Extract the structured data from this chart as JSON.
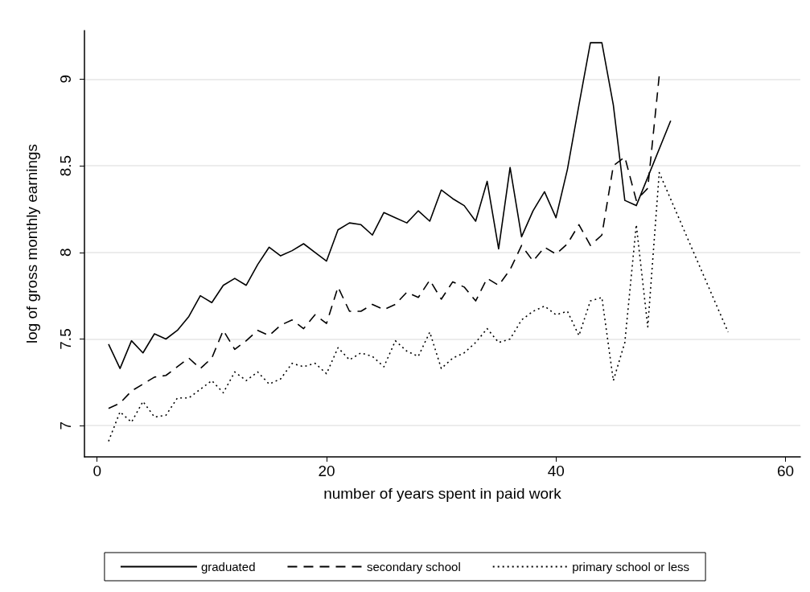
{
  "chart_data": {
    "type": "line",
    "xlabel": "number of years spent in paid work",
    "ylabel": "log of gross monthly earnings",
    "xlim": [
      -1.1,
      61.3
    ],
    "xticks": [
      0,
      20,
      40,
      60
    ],
    "ylim": [
      6.82,
      9.28
    ],
    "yticks": [
      7,
      7.5,
      8,
      8.5,
      9
    ],
    "grid": "y",
    "legend": "bottom",
    "marker": "none",
    "series": [
      {
        "name": "graduated",
        "color": "#000000",
        "line_style": "solid",
        "x": [
          1,
          2,
          3,
          4,
          5,
          6,
          7,
          8,
          9,
          10,
          11,
          12,
          13,
          14,
          15,
          16,
          17,
          18,
          19,
          20,
          21,
          22,
          23,
          24,
          25,
          26,
          27,
          28,
          29,
          30,
          31,
          32,
          33,
          34,
          35,
          36,
          37,
          38,
          39,
          40,
          41,
          42,
          43,
          44,
          45,
          46,
          47,
          50
        ],
        "values": [
          7.47,
          7.33,
          7.49,
          7.42,
          7.53,
          7.5,
          7.55,
          7.63,
          7.75,
          7.71,
          7.81,
          7.85,
          7.81,
          7.93,
          8.03,
          7.98,
          8.01,
          8.05,
          8,
          7.95,
          8.13,
          8.17,
          8.16,
          8.1,
          8.23,
          8.2,
          8.17,
          8.24,
          8.18,
          8.36,
          8.31,
          8.27,
          8.18,
          8.41,
          8.02,
          8.49,
          8.09,
          8.24,
          8.35,
          8.2,
          8.48,
          8.85,
          9.21,
          9.21,
          8.85,
          8.3,
          8.27,
          8.76
        ]
      },
      {
        "name": "secondary school",
        "color": "#000000",
        "line_style": "dashed",
        "x": [
          1,
          2,
          3,
          4,
          5,
          6,
          7,
          8,
          9,
          10,
          11,
          12,
          13,
          14,
          15,
          16,
          17,
          18,
          19,
          20,
          21,
          22,
          23,
          24,
          25,
          26,
          27,
          28,
          29,
          30,
          31,
          32,
          33,
          34,
          35,
          36,
          37,
          38,
          39,
          40,
          41,
          42,
          43,
          44,
          45,
          46,
          47,
          48,
          49
        ],
        "values": [
          7.1,
          7.13,
          7.2,
          7.24,
          7.28,
          7.29,
          7.34,
          7.39,
          7.33,
          7.39,
          7.55,
          7.44,
          7.49,
          7.55,
          7.52,
          7.58,
          7.61,
          7.56,
          7.64,
          7.59,
          7.8,
          7.66,
          7.66,
          7.7,
          7.67,
          7.7,
          7.77,
          7.74,
          7.84,
          7.73,
          7.83,
          7.8,
          7.72,
          7.85,
          7.81,
          7.9,
          8.04,
          7.95,
          8.03,
          7.99,
          8.05,
          8.16,
          8.04,
          8.1,
          8.5,
          8.55,
          8.3,
          8.37,
          9.02
        ]
      },
      {
        "name": "primary school or less",
        "color": "#000000",
        "line_style": "dotted",
        "x": [
          1,
          2,
          3,
          4,
          5,
          6,
          7,
          8,
          9,
          10,
          11,
          12,
          13,
          14,
          15,
          16,
          17,
          18,
          19,
          20,
          21,
          22,
          23,
          24,
          25,
          26,
          27,
          28,
          29,
          30,
          31,
          32,
          33,
          34,
          35,
          36,
          37,
          38,
          39,
          40,
          41,
          42,
          43,
          44,
          45,
          46,
          47,
          48,
          49,
          55
        ],
        "values": [
          6.91,
          7.08,
          7.02,
          7.14,
          7.05,
          7.06,
          7.16,
          7.16,
          7.21,
          7.26,
          7.19,
          7.31,
          7.26,
          7.31,
          7.24,
          7.27,
          7.36,
          7.34,
          7.36,
          7.3,
          7.45,
          7.38,
          7.42,
          7.4,
          7.34,
          7.49,
          7.43,
          7.4,
          7.54,
          7.33,
          7.39,
          7.42,
          7.48,
          7.56,
          7.48,
          7.5,
          7.61,
          7.66,
          7.69,
          7.64,
          7.66,
          7.52,
          7.72,
          7.74,
          7.26,
          7.48,
          8.16,
          7.57,
          8.46,
          7.54
        ]
      }
    ]
  }
}
